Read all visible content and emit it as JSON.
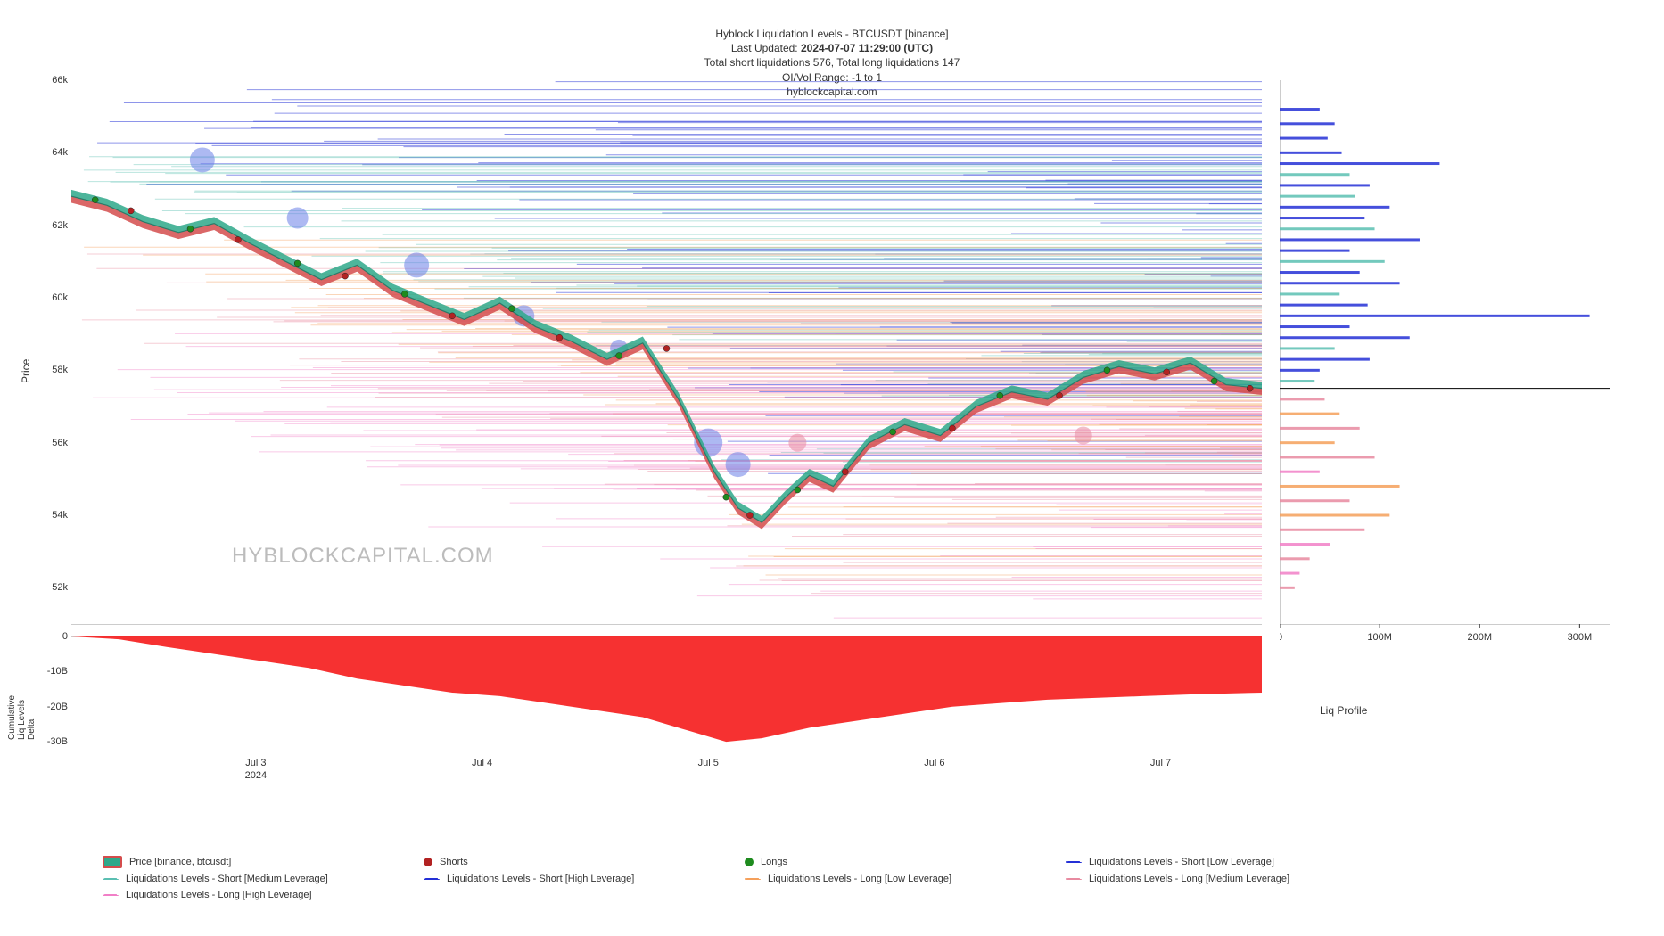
{
  "header": {
    "title": "Hyblock Liquidation Levels - BTCUSDT [binance]",
    "last_updated_label": "Last Updated:",
    "last_updated_value": "2024-07-07 11:29:00 (UTC)",
    "totals": "Total short liquidations 576, Total long liquidations 147",
    "oi_range": "OI/Vol Range: -1 to 1",
    "site": "hyblockcapital.com"
  },
  "watermark": "HYBLOCKCAPITAL.COM",
  "main_chart": {
    "y_axis_label": "Price",
    "y_min": 51000,
    "y_max": 66000,
    "y_ticks": [
      52000,
      54000,
      56000,
      58000,
      60000,
      62000,
      64000,
      66000
    ],
    "y_tick_labels": [
      "52k",
      "54k",
      "56k",
      "58k",
      "60k",
      "62k",
      "64k",
      "66k"
    ],
    "x_ticks": [
      0.155,
      0.345,
      0.535,
      0.725,
      0.915
    ],
    "x_tick_labels": [
      "Jul 3",
      "Jul 4",
      "Jul 5",
      "Jul 6",
      "Jul 7"
    ],
    "x_subtick_label": "2024",
    "price_color_top": "#2ea88a",
    "price_color_bottom": "#d44c4c",
    "price_line_color": "#2c7a68",
    "price_line_width": 1.2,
    "price_series": [
      [
        0.0,
        62800
      ],
      [
        0.03,
        62550
      ],
      [
        0.06,
        62100
      ],
      [
        0.09,
        61800
      ],
      [
        0.12,
        62050
      ],
      [
        0.15,
        61500
      ],
      [
        0.18,
        61000
      ],
      [
        0.21,
        60500
      ],
      [
        0.24,
        60900
      ],
      [
        0.27,
        60200
      ],
      [
        0.3,
        59800
      ],
      [
        0.33,
        59400
      ],
      [
        0.36,
        59850
      ],
      [
        0.39,
        59200
      ],
      [
        0.42,
        58800
      ],
      [
        0.45,
        58300
      ],
      [
        0.48,
        58750
      ],
      [
        0.51,
        57200
      ],
      [
        0.54,
        55200
      ],
      [
        0.56,
        54200
      ],
      [
        0.58,
        53800
      ],
      [
        0.6,
        54500
      ],
      [
        0.62,
        55100
      ],
      [
        0.64,
        54800
      ],
      [
        0.67,
        56000
      ],
      [
        0.7,
        56500
      ],
      [
        0.73,
        56200
      ],
      [
        0.76,
        57000
      ],
      [
        0.79,
        57400
      ],
      [
        0.82,
        57200
      ],
      [
        0.85,
        57800
      ],
      [
        0.88,
        58100
      ],
      [
        0.91,
        57900
      ],
      [
        0.94,
        58200
      ],
      [
        0.97,
        57600
      ],
      [
        1.0,
        57500
      ]
    ],
    "shorts_color": "#b22222",
    "longs_color": "#1e8b1e",
    "markers": [
      {
        "x": 0.02,
        "y": 62700,
        "t": "long"
      },
      {
        "x": 0.05,
        "y": 62400,
        "t": "short"
      },
      {
        "x": 0.1,
        "y": 61900,
        "t": "long"
      },
      {
        "x": 0.14,
        "y": 61600,
        "t": "short"
      },
      {
        "x": 0.19,
        "y": 60950,
        "t": "long"
      },
      {
        "x": 0.23,
        "y": 60600,
        "t": "short"
      },
      {
        "x": 0.28,
        "y": 60100,
        "t": "long"
      },
      {
        "x": 0.32,
        "y": 59500,
        "t": "short"
      },
      {
        "x": 0.37,
        "y": 59700,
        "t": "long"
      },
      {
        "x": 0.41,
        "y": 58900,
        "t": "short"
      },
      {
        "x": 0.46,
        "y": 58400,
        "t": "long"
      },
      {
        "x": 0.5,
        "y": 58600,
        "t": "short"
      },
      {
        "x": 0.55,
        "y": 54500,
        "t": "long"
      },
      {
        "x": 0.57,
        "y": 54000,
        "t": "short"
      },
      {
        "x": 0.61,
        "y": 54700,
        "t": "long"
      },
      {
        "x": 0.65,
        "y": 55200,
        "t": "short"
      },
      {
        "x": 0.69,
        "y": 56300,
        "t": "long"
      },
      {
        "x": 0.74,
        "y": 56400,
        "t": "short"
      },
      {
        "x": 0.78,
        "y": 57300,
        "t": "long"
      },
      {
        "x": 0.83,
        "y": 57300,
        "t": "short"
      },
      {
        "x": 0.87,
        "y": 58000,
        "t": "long"
      },
      {
        "x": 0.92,
        "y": 57950,
        "t": "short"
      },
      {
        "x": 0.96,
        "y": 57700,
        "t": "long"
      },
      {
        "x": 0.99,
        "y": 57500,
        "t": "short"
      }
    ],
    "bubbles": [
      {
        "x": 0.11,
        "y": 63800,
        "r": 14,
        "c": "#6a7fe8"
      },
      {
        "x": 0.19,
        "y": 62200,
        "r": 12,
        "c": "#6a7fe8"
      },
      {
        "x": 0.29,
        "y": 60900,
        "r": 14,
        "c": "#6a7fe8"
      },
      {
        "x": 0.38,
        "y": 59500,
        "r": 12,
        "c": "#6a7fe8"
      },
      {
        "x": 0.46,
        "y": 58600,
        "r": 10,
        "c": "#6a7fe8"
      },
      {
        "x": 0.535,
        "y": 56000,
        "r": 16,
        "c": "#6a7fe8"
      },
      {
        "x": 0.56,
        "y": 55400,
        "r": 14,
        "c": "#6a7fe8"
      },
      {
        "x": 0.61,
        "y": 56000,
        "r": 10,
        "c": "#e88aa0"
      },
      {
        "x": 0.85,
        "y": 56200,
        "r": 10,
        "c": "#e88aa0"
      }
    ],
    "liq_bands": {
      "short_low_leverage": {
        "color": "#2430d6",
        "opacity": 0.85
      },
      "short_med_leverage": {
        "color": "#5bbfb2",
        "opacity": 0.7
      },
      "short_high_leverage": {
        "color": "#2430d6",
        "opacity": 0.3
      },
      "long_low_leverage": {
        "color": "#f5a05b",
        "opacity": 0.7
      },
      "long_med_leverage": {
        "color": "#e88aa0",
        "opacity": 0.7
      },
      "long_high_leverage": {
        "color": "#f17fc7",
        "opacity": 0.7
      }
    }
  },
  "delta_chart": {
    "y_axis_label": "Cumulative\nLiq Levels\nDelta",
    "y_min": -32000000000,
    "y_max": 1000000000,
    "y_ticks": [
      0,
      -10000000000,
      -20000000000,
      -30000000000
    ],
    "y_tick_labels": [
      "0",
      "-10B",
      "-20B",
      "-30B"
    ],
    "fill_color": "#f62626",
    "series": [
      [
        0.0,
        0
      ],
      [
        0.04,
        -800000000
      ],
      [
        0.08,
        -3000000000
      ],
      [
        0.12,
        -5000000000
      ],
      [
        0.16,
        -7000000000
      ],
      [
        0.2,
        -9000000000
      ],
      [
        0.24,
        -12000000000
      ],
      [
        0.28,
        -14000000000
      ],
      [
        0.32,
        -16000000000
      ],
      [
        0.36,
        -17000000000
      ],
      [
        0.4,
        -19000000000
      ],
      [
        0.44,
        -21000000000
      ],
      [
        0.48,
        -23000000000
      ],
      [
        0.52,
        -27000000000
      ],
      [
        0.55,
        -30000000000
      ],
      [
        0.58,
        -29000000000
      ],
      [
        0.62,
        -26000000000
      ],
      [
        0.66,
        -24000000000
      ],
      [
        0.7,
        -22000000000
      ],
      [
        0.74,
        -20000000000
      ],
      [
        0.78,
        -19000000000
      ],
      [
        0.82,
        -18000000000
      ],
      [
        0.86,
        -17500000000
      ],
      [
        0.9,
        -17000000000
      ],
      [
        0.94,
        -16500000000
      ],
      [
        1.0,
        -16000000000
      ]
    ]
  },
  "profile_chart": {
    "x_axis_label": "Liq Profile",
    "x_ticks": [
      0,
      100000000,
      200000000,
      300000000
    ],
    "x_tick_labels": [
      "0",
      "100M",
      "200M",
      "300M"
    ],
    "x_max": 330000000,
    "current_price": 57500,
    "bars": [
      {
        "y": 65200,
        "v": 40000000,
        "c": "#2430d6"
      },
      {
        "y": 64800,
        "v": 55000000,
        "c": "#2430d6"
      },
      {
        "y": 64400,
        "v": 48000000,
        "c": "#2430d6"
      },
      {
        "y": 64000,
        "v": 62000000,
        "c": "#2430d6"
      },
      {
        "y": 63700,
        "v": 160000000,
        "c": "#2430d6"
      },
      {
        "y": 63400,
        "v": 70000000,
        "c": "#5bbfb2"
      },
      {
        "y": 63100,
        "v": 90000000,
        "c": "#2430d6"
      },
      {
        "y": 62800,
        "v": 75000000,
        "c": "#5bbfb2"
      },
      {
        "y": 62500,
        "v": 110000000,
        "c": "#2430d6"
      },
      {
        "y": 62200,
        "v": 85000000,
        "c": "#2430d6"
      },
      {
        "y": 61900,
        "v": 95000000,
        "c": "#5bbfb2"
      },
      {
        "y": 61600,
        "v": 140000000,
        "c": "#2430d6"
      },
      {
        "y": 61300,
        "v": 70000000,
        "c": "#2430d6"
      },
      {
        "y": 61000,
        "v": 105000000,
        "c": "#5bbfb2"
      },
      {
        "y": 60700,
        "v": 80000000,
        "c": "#2430d6"
      },
      {
        "y": 60400,
        "v": 120000000,
        "c": "#2430d6"
      },
      {
        "y": 60100,
        "v": 60000000,
        "c": "#5bbfb2"
      },
      {
        "y": 59800,
        "v": 88000000,
        "c": "#2430d6"
      },
      {
        "y": 59500,
        "v": 310000000,
        "c": "#2430d6"
      },
      {
        "y": 59200,
        "v": 70000000,
        "c": "#2430d6"
      },
      {
        "y": 58900,
        "v": 130000000,
        "c": "#2430d6"
      },
      {
        "y": 58600,
        "v": 55000000,
        "c": "#5bbfb2"
      },
      {
        "y": 58300,
        "v": 90000000,
        "c": "#2430d6"
      },
      {
        "y": 58000,
        "v": 40000000,
        "c": "#2430d6"
      },
      {
        "y": 57700,
        "v": 35000000,
        "c": "#5bbfb2"
      },
      {
        "y": 57200,
        "v": 45000000,
        "c": "#e88aa0"
      },
      {
        "y": 56800,
        "v": 60000000,
        "c": "#f5a05b"
      },
      {
        "y": 56400,
        "v": 80000000,
        "c": "#e88aa0"
      },
      {
        "y": 56000,
        "v": 55000000,
        "c": "#f5a05b"
      },
      {
        "y": 55600,
        "v": 95000000,
        "c": "#e88aa0"
      },
      {
        "y": 55200,
        "v": 40000000,
        "c": "#f17fc7"
      },
      {
        "y": 54800,
        "v": 120000000,
        "c": "#f5a05b"
      },
      {
        "y": 54400,
        "v": 70000000,
        "c": "#e88aa0"
      },
      {
        "y": 54000,
        "v": 110000000,
        "c": "#f5a05b"
      },
      {
        "y": 53600,
        "v": 85000000,
        "c": "#e88aa0"
      },
      {
        "y": 53200,
        "v": 50000000,
        "c": "#f17fc7"
      },
      {
        "y": 52800,
        "v": 30000000,
        "c": "#e88aa0"
      },
      {
        "y": 52400,
        "v": 20000000,
        "c": "#f17fc7"
      },
      {
        "y": 52000,
        "v": 15000000,
        "c": "#e88aa0"
      }
    ]
  },
  "legend": [
    {
      "swatch_type": "box",
      "color": "#2ea88a",
      "border": "#d44c4c",
      "label": "Price [binance, btcusdt]"
    },
    {
      "swatch_type": "dot",
      "color": "#b22222",
      "label": "Shorts"
    },
    {
      "swatch_type": "dot",
      "color": "#1e8b1e",
      "label": "Longs"
    },
    {
      "swatch_type": "dash",
      "color": "#2430d6",
      "label": "Liquidations Levels - Short [Low Leverage]"
    },
    {
      "swatch_type": "dash",
      "color": "#5bbfb2",
      "label": "Liquidations Levels - Short [Medium Leverage]"
    },
    {
      "swatch_type": "dash",
      "color": "#2430d6",
      "label": "Liquidations Levels - Short [High Leverage]"
    },
    {
      "swatch_type": "dash",
      "color": "#f5a05b",
      "label": "Liquidations Levels - Long [Low Leverage]"
    },
    {
      "swatch_type": "dash",
      "color": "#e88aa0",
      "label": "Liquidations Levels - Long [Medium Leverage]"
    },
    {
      "swatch_type": "dash",
      "color": "#f17fc7",
      "label": "Liquidations Levels - Long [High Leverage]"
    }
  ]
}
